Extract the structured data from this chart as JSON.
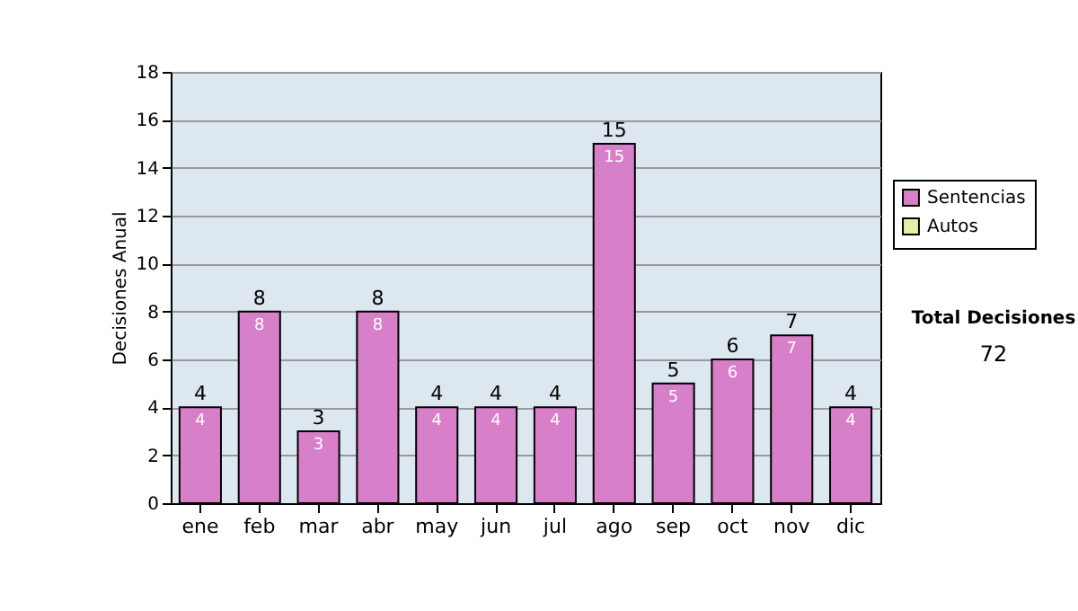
{
  "chart_data": {
    "type": "bar",
    "ylabel": "Decisiones Anual",
    "categories": [
      "ene",
      "feb",
      "mar",
      "abr",
      "may",
      "jun",
      "jul",
      "ago",
      "sep",
      "oct",
      "nov",
      "dic"
    ],
    "series": [
      {
        "name": "Sentencias",
        "color": "#d77fc8",
        "values": [
          4,
          8,
          3,
          8,
          4,
          4,
          4,
          15,
          5,
          6,
          7,
          4
        ]
      },
      {
        "name": "Autos",
        "color": "#e4f0a8",
        "values": [
          null,
          null,
          null,
          null,
          null,
          null,
          null,
          null,
          null,
          null,
          null,
          null
        ]
      }
    ],
    "ylim": [
      0,
      18
    ],
    "yticks": [
      0,
      2,
      4,
      6,
      8,
      10,
      12,
      14,
      16,
      18
    ],
    "grid": "y",
    "legend": "right",
    "data_labels": true,
    "totals": [
      "4",
      "8",
      "3",
      "8",
      "4",
      "4",
      "4",
      "15",
      "5",
      "6",
      "7",
      "4"
    ],
    "annotations": [
      "Total Decisiones",
      "72"
    ]
  }
}
